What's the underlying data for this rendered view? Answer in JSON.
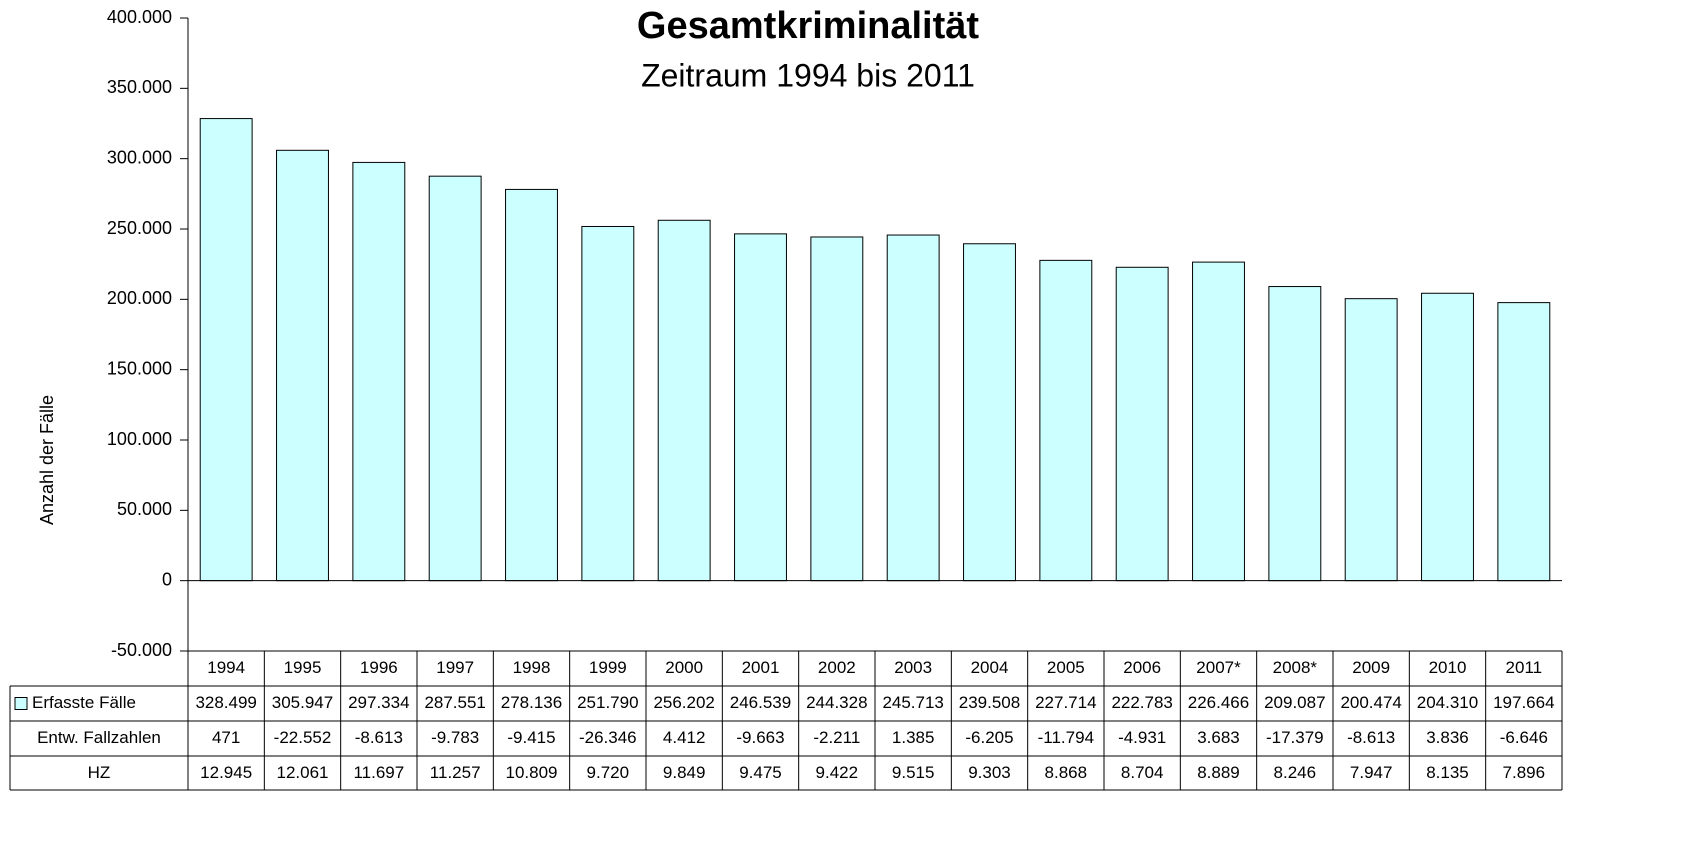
{
  "chart_data": {
    "type": "bar",
    "title": "Gesamtkriminalität",
    "subtitle": "Zeitraum 1994 bis 2011",
    "y_label": "Anzahl der Fälle",
    "categories": [
      "1994",
      "1995",
      "1996",
      "1997",
      "1998",
      "1999",
      "2000",
      "2001",
      "2002",
      "2003",
      "2004",
      "2005",
      "2006",
      "2007*",
      "2008*",
      "2009",
      "2010",
      "2011"
    ],
    "series": [
      {
        "name": "Erfasste Fälle",
        "color": "#ccffff",
        "values": [
          328499,
          305947,
          297334,
          287551,
          278136,
          251790,
          256202,
          246539,
          244328,
          245713,
          239508,
          227714,
          222783,
          226466,
          209087,
          200474,
          204310,
          197664
        ],
        "value_labels": [
          "328.499",
          "305.947",
          "297.334",
          "287.551",
          "278.136",
          "251.790",
          "256.202",
          "246.539",
          "244.328",
          "245.713",
          "239.508",
          "227.714",
          "222.783",
          "226.466",
          "209.087",
          "200.474",
          "204.310",
          "197.664"
        ]
      }
    ],
    "table_rows": [
      {
        "label": "Entw. Fallzahlen",
        "cells": [
          "471",
          "-22.552",
          "-8.613",
          "-9.783",
          "-9.415",
          "-26.346",
          "4.412",
          "-9.663",
          "-2.211",
          "1.385",
          "-6.205",
          "-11.794",
          "-4.931",
          "3.683",
          "-17.379",
          "-8.613",
          "3.836",
          "-6.646"
        ]
      },
      {
        "label": "HZ",
        "cells": [
          "12.945",
          "12.061",
          "11.697",
          "11.257",
          "10.809",
          "9.720",
          "9.849",
          "9.475",
          "9.422",
          "9.515",
          "9.303",
          "8.868",
          "8.704",
          "8.889",
          "8.246",
          "7.947",
          "8.135",
          "7.896"
        ]
      }
    ],
    "ylim": [
      -50000,
      400000
    ],
    "yticks": [
      {
        "value": -50000,
        "label": "-50.000"
      },
      0,
      {
        "value": 50000,
        "label": "50.000"
      },
      {
        "value": 100000,
        "label": "100.000"
      },
      {
        "value": 150000,
        "label": "150.000"
      },
      {
        "value": 200000,
        "label": "200.000"
      },
      {
        "value": 250000,
        "label": "250.000"
      },
      {
        "value": 300000,
        "label": "300.000"
      },
      {
        "value": 350000,
        "label": "350.000"
      },
      {
        "value": 400000,
        "label": "400.000"
      }
    ],
    "title_color": "#c0393b"
  }
}
